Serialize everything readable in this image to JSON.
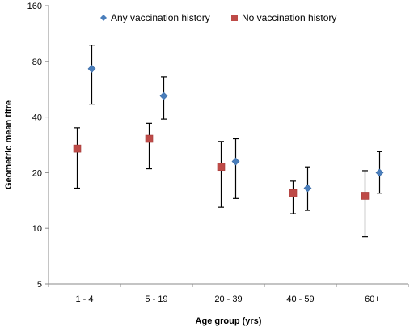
{
  "chart_data": {
    "type": "scatter",
    "title": "",
    "xlabel": "Age group (yrs)",
    "ylabel": "Geometric mean titre",
    "y_scale": "log2",
    "ylim": [
      5,
      160
    ],
    "yticks": [
      5,
      10,
      20,
      40,
      80,
      160
    ],
    "categories": [
      "1 - 4",
      "5 - 19",
      "20 - 39",
      "40 - 59",
      "60+"
    ],
    "legend_position": "top",
    "grid": false,
    "series": [
      {
        "name": "Any vaccination history",
        "marker": "diamond",
        "color": "#4a7ebb",
        "values": [
          73,
          52,
          23,
          16.5,
          20
        ],
        "error_low": [
          47,
          39,
          14.5,
          12.5,
          15.5
        ],
        "error_high": [
          98,
          66,
          30.5,
          21.5,
          26
        ]
      },
      {
        "name": "No vaccination history",
        "marker": "square",
        "color": "#be4b48",
        "values": [
          27,
          30.5,
          21.5,
          15.5,
          15
        ],
        "error_low": [
          16.5,
          21,
          13,
          12,
          9
        ],
        "error_high": [
          35,
          37,
          29.5,
          18,
          20.5
        ]
      }
    ]
  }
}
